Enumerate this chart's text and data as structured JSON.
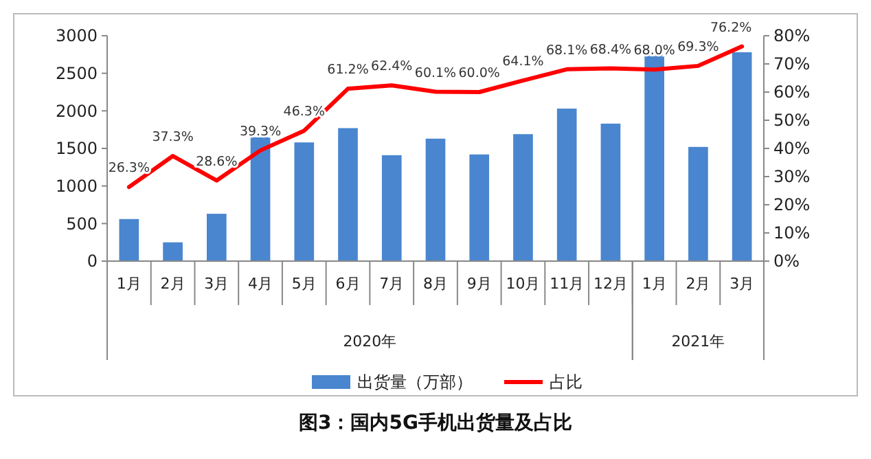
{
  "chart_data": {
    "type": "bar",
    "title": "图3：国内5G手机出货量及占比",
    "categories": [
      "1月",
      "2月",
      "3月",
      "4月",
      "5月",
      "6月",
      "7月",
      "8月",
      "9月",
      "10月",
      "11月",
      "12月",
      "1月",
      "2月",
      "3月"
    ],
    "series": [
      {
        "name": "出货量（万部）",
        "color": "#4a86cf",
        "values": [
          560,
          250,
          630,
          1650,
          1580,
          1770,
          1410,
          1630,
          1420,
          1690,
          2030,
          1830,
          2750,
          1520,
          2780
        ]
      },
      {
        "name": "占比",
        "type": "line",
        "axis": "y2",
        "color": "#ff0000",
        "values": [
          26.3,
          37.3,
          28.6,
          39.3,
          46.3,
          61.2,
          62.4,
          60.1,
          60.0,
          64.1,
          68.1,
          68.4,
          68.0,
          69.3,
          76.2
        ],
        "value_labels": [
          "26.3%",
          "37.3%",
          "28.6%",
          "39.3%",
          "46.3%",
          "61.2%",
          "62.4%",
          "60.1%",
          "60.0%",
          "64.1%",
          "68.1%",
          "68.4%",
          "68.0%",
          "69.3%",
          "76.2%"
        ]
      }
    ],
    "ylim": [
      0,
      3000
    ],
    "yticks": [
      0,
      500,
      1000,
      1500,
      2000,
      2500,
      3000
    ],
    "y2lim": [
      0,
      80
    ],
    "y2ticks": [
      {
        "value": 0,
        "label": "0%"
      },
      {
        "value": 10,
        "label": "10%"
      },
      {
        "value": 20,
        "label": "20%"
      },
      {
        "value": 30,
        "label": "30%"
      },
      {
        "value": 40,
        "label": "40%"
      },
      {
        "value": 50,
        "label": "50%"
      },
      {
        "value": 60,
        "label": "60%"
      },
      {
        "value": 70,
        "label": "70%"
      },
      {
        "value": 80,
        "label": "80%"
      }
    ],
    "annotations": [
      "2020年",
      "2021年"
    ],
    "legend": "bottom",
    "grid": false
  }
}
